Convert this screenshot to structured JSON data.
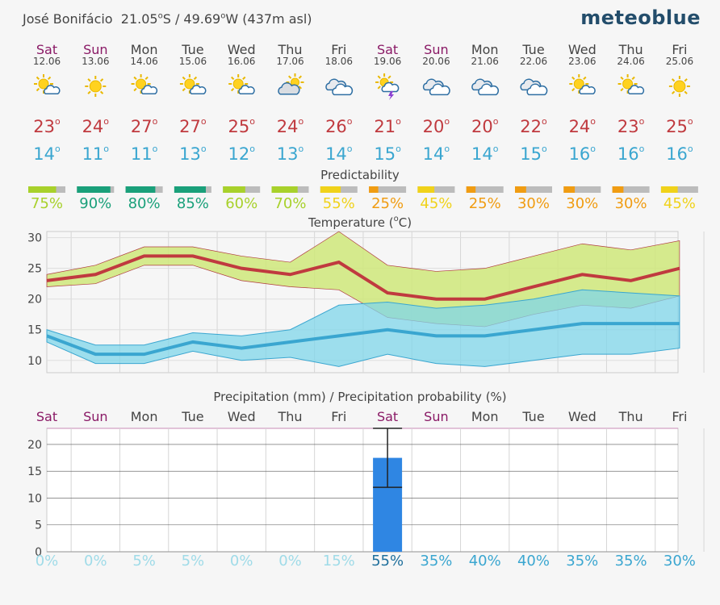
{
  "header": {
    "location": "José Bonifácio",
    "coords": "21.05",
    "deg1": "o",
    "lat_suffix": "S / 49.69",
    "deg2": "o",
    "lon_suffix": "W (437m asl)",
    "brand": "meteoblue"
  },
  "days": [
    {
      "day": "Sat",
      "date": "12.06",
      "weekend": true,
      "icon": "sun-cloud-icon",
      "max": "23",
      "min": "14",
      "pred": "75%",
      "pred_val": 75,
      "pred_color": "#a8d12b"
    },
    {
      "day": "Sun",
      "date": "13.06",
      "weekend": true,
      "icon": "sun-icon",
      "max": "24",
      "min": "11",
      "pred": "90%",
      "pred_val": 90,
      "pred_color": "#1aa07a"
    },
    {
      "day": "Mon",
      "date": "14.06",
      "weekend": false,
      "icon": "sun-cloud-icon",
      "max": "27",
      "min": "11",
      "pred": "80%",
      "pred_val": 80,
      "pred_color": "#1aa07a"
    },
    {
      "day": "Tue",
      "date": "15.06",
      "weekend": false,
      "icon": "sun-cloud-icon",
      "max": "27",
      "min": "13",
      "pred": "85%",
      "pred_val": 85,
      "pred_color": "#1aa07a"
    },
    {
      "day": "Wed",
      "date": "16.06",
      "weekend": false,
      "icon": "sun-cloud-icon",
      "max": "25",
      "min": "12",
      "pred": "60%",
      "pred_val": 60,
      "pred_color": "#a8d12b"
    },
    {
      "day": "Thu",
      "date": "17.06",
      "weekend": false,
      "icon": "cloud-sun-icon",
      "max": "24",
      "min": "13",
      "pred": "70%",
      "pred_val": 70,
      "pred_color": "#a8d12b"
    },
    {
      "day": "Fri",
      "date": "18.06",
      "weekend": false,
      "icon": "cloud-icon",
      "max": "26",
      "min": "14",
      "pred": "55%",
      "pred_val": 55,
      "pred_color": "#f0d21a"
    },
    {
      "day": "Sat",
      "date": "19.06",
      "weekend": true,
      "icon": "thunder-icon",
      "max": "21",
      "min": "15",
      "pred": "25%",
      "pred_val": 25,
      "pred_color": "#f09c12"
    },
    {
      "day": "Sun",
      "date": "20.06",
      "weekend": true,
      "icon": "cloud-icon",
      "max": "20",
      "min": "14",
      "pred": "45%",
      "pred_val": 45,
      "pred_color": "#f0d21a"
    },
    {
      "day": "Mon",
      "date": "21.06",
      "weekend": false,
      "icon": "cloud-icon",
      "max": "20",
      "min": "14",
      "pred": "25%",
      "pred_val": 25,
      "pred_color": "#f09c12"
    },
    {
      "day": "Tue",
      "date": "22.06",
      "weekend": false,
      "icon": "cloud-icon",
      "max": "22",
      "min": "15",
      "pred": "30%",
      "pred_val": 30,
      "pred_color": "#f09c12"
    },
    {
      "day": "Wed",
      "date": "23.06",
      "weekend": false,
      "icon": "sun-cloud-icon",
      "max": "24",
      "min": "16",
      "pred": "30%",
      "pred_val": 30,
      "pred_color": "#f09c12"
    },
    {
      "day": "Thu",
      "date": "24.06",
      "weekend": false,
      "icon": "sun-cloud-icon",
      "max": "23",
      "min": "16",
      "pred": "30%",
      "pred_val": 30,
      "pred_color": "#f09c12"
    },
    {
      "day": "Fri",
      "date": "25.06",
      "weekend": false,
      "icon": "sun-icon",
      "max": "25",
      "min": "16",
      "pred": "45%",
      "pred_val": 45,
      "pred_color": "#f0d21a"
    }
  ],
  "colors": {
    "weekend": "#8a1a66",
    "weekday": "#444444",
    "max": "#c03a3f",
    "min": "#3aa6d0",
    "green_band": "#cfe87a",
    "blue_band": "#7fd6ea",
    "precip_bar": "#2f86e3"
  },
  "predictability_title": "Predictability",
  "chart_data": [
    {
      "type": "line",
      "title": "Temperature (°C)",
      "title_text": "Temperature (",
      "title_unit": "C)",
      "title_deg": "o",
      "ylim": [
        8,
        31
      ],
      "yticks": [
        10,
        15,
        20,
        25,
        30
      ],
      "ytick_labels": [
        "10",
        "15",
        "20",
        "25",
        "30"
      ],
      "x": [
        0,
        1,
        2,
        3,
        4,
        5,
        6,
        7,
        8,
        9,
        10,
        11,
        12,
        13
      ],
      "series": [
        {
          "name": "Max temperature",
          "values": [
            23,
            24,
            27,
            27,
            25,
            24,
            26,
            21,
            20,
            20,
            22,
            24,
            23,
            25
          ],
          "band_low": [
            22,
            22.5,
            25.5,
            25.5,
            23,
            22,
            21.5,
            17,
            16,
            15.5,
            17.5,
            19,
            18.5,
            20.5
          ],
          "band_high": [
            24,
            25.5,
            28.5,
            28.5,
            27,
            26,
            31,
            25.5,
            24.5,
            25,
            27,
            29,
            28,
            29.5
          ]
        },
        {
          "name": "Min temperature",
          "values": [
            14,
            11,
            11,
            13,
            12,
            13,
            14,
            15,
            14,
            14,
            15,
            16,
            16,
            16
          ],
          "band_low": [
            13,
            9.5,
            9.5,
            11.5,
            10,
            10.5,
            9,
            11,
            9.5,
            9,
            10,
            11,
            11,
            12
          ],
          "band_high": [
            15,
            12.5,
            12.5,
            14.5,
            14,
            15,
            19,
            19.5,
            18.5,
            19,
            20,
            21.5,
            21,
            20.5
          ]
        }
      ]
    },
    {
      "type": "bar",
      "title": "Precipitation (mm) / Precipitation probability (%)",
      "ylim": [
        0,
        23
      ],
      "yticks": [
        0,
        5,
        10,
        15,
        20
      ],
      "ytick_labels": [
        "0",
        "5",
        "10",
        "15",
        "20"
      ],
      "categories": [
        "Sat",
        "Sun",
        "Mon",
        "Tue",
        "Wed",
        "Thu",
        "Fri",
        "Sat",
        "Sun",
        "Mon",
        "Tue",
        "Wed",
        "Thu",
        "Fri"
      ],
      "values": [
        0,
        0,
        0,
        0,
        0,
        0,
        0,
        17.5,
        0,
        0,
        0,
        0,
        0,
        0
      ],
      "error_low": [
        0,
        0,
        0,
        0,
        0,
        0,
        0,
        12,
        0,
        0,
        0,
        0,
        0,
        0
      ],
      "error_high": [
        0,
        0,
        0,
        0,
        0,
        0,
        0,
        23,
        0,
        0,
        0,
        0,
        0,
        0
      ],
      "probability": [
        "0%",
        "0%",
        "5%",
        "5%",
        "0%",
        "0%",
        "15%",
        "55%",
        "35%",
        "40%",
        "40%",
        "35%",
        "35%",
        "30%"
      ],
      "probability_values": [
        0,
        0,
        5,
        5,
        0,
        0,
        15,
        55,
        35,
        40,
        40,
        35,
        35,
        30
      ]
    }
  ]
}
